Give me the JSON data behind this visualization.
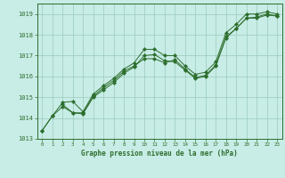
{
  "title": "Graphe pression niveau de la mer (hPa)",
  "xlabel_ticks": [
    0,
    1,
    2,
    3,
    4,
    5,
    6,
    7,
    8,
    9,
    10,
    11,
    12,
    13,
    14,
    15,
    16,
    17,
    18,
    19,
    20,
    21,
    22,
    23
  ],
  "ylim": [
    1013.0,
    1019.5
  ],
  "xlim": [
    -0.5,
    23.5
  ],
  "yticks": [
    1013,
    1014,
    1015,
    1016,
    1017,
    1018,
    1019
  ],
  "bg_color": "#c8ece6",
  "grid_color": "#99ccbb",
  "line_color": "#2d6e2d",
  "marker_color": "#2d6e2d",
  "line1_x": [
    0,
    1,
    2,
    3,
    4,
    5,
    6,
    7,
    8,
    9,
    10,
    11,
    12,
    13,
    14,
    15,
    16,
    17,
    18,
    19,
    20,
    21,
    22,
    23
  ],
  "line1_y": [
    1013.4,
    1014.1,
    1014.75,
    1014.8,
    1014.3,
    1015.15,
    1015.55,
    1015.9,
    1016.35,
    1016.65,
    1017.3,
    1017.3,
    1017.0,
    1017.0,
    1016.5,
    1016.1,
    1016.2,
    1016.7,
    1018.1,
    1018.5,
    1019.0,
    1019.0,
    1019.1,
    1019.0
  ],
  "line2_x": [
    2,
    3,
    4,
    5,
    6,
    7,
    8,
    9,
    10,
    11,
    12,
    13,
    14,
    15,
    16,
    17,
    18,
    19,
    20,
    21,
    22,
    23
  ],
  "line2_y": [
    1014.65,
    1014.25,
    1014.25,
    1015.05,
    1015.45,
    1015.8,
    1016.25,
    1016.5,
    1016.85,
    1016.85,
    1016.65,
    1016.8,
    1016.35,
    1015.95,
    1016.05,
    1016.55,
    1017.9,
    1018.3,
    1018.8,
    1018.85,
    1019.0,
    1018.9
  ],
  "line3_x": [
    0,
    1,
    2,
    3,
    4,
    5,
    6,
    7,
    8,
    9,
    10,
    11,
    12,
    13,
    14,
    15,
    16,
    17,
    18,
    19,
    20,
    21,
    22,
    23
  ],
  "line3_y": [
    1013.4,
    1014.1,
    1014.55,
    1014.25,
    1014.2,
    1015.0,
    1015.35,
    1015.7,
    1016.15,
    1016.45,
    1017.0,
    1017.05,
    1016.75,
    1016.7,
    1016.3,
    1015.9,
    1016.0,
    1016.5,
    1017.85,
    1018.3,
    1018.8,
    1018.8,
    1018.95,
    1018.9
  ]
}
